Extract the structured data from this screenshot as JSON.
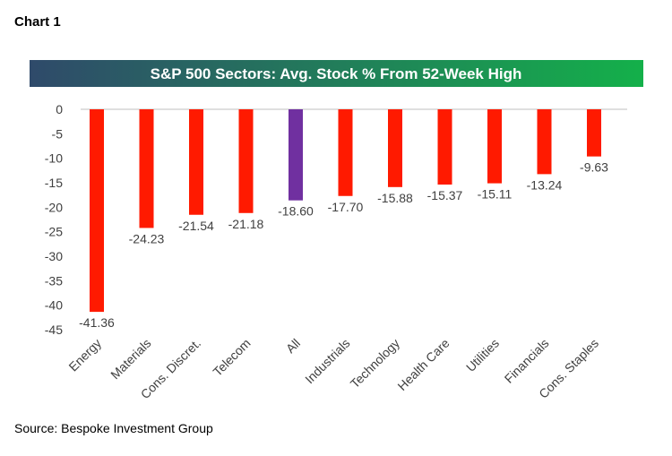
{
  "page": {
    "chart_label": "Chart 1",
    "source": "Source: Bespoke Investment Group"
  },
  "chart_data": {
    "type": "bar",
    "title": "S&P 500 Sectors: Avg. Stock % From 52-Week High",
    "categories": [
      "Energy",
      "Materials",
      "Cons. Discret.",
      "Telecom",
      "All",
      "Industrials",
      "Technology",
      "Health Care",
      "Utilities",
      "Financials",
      "Cons. Staples"
    ],
    "values": [
      -41.36,
      -24.23,
      -21.54,
      -21.18,
      -18.6,
      -17.7,
      -15.88,
      -15.37,
      -15.11,
      -13.24,
      -9.63
    ],
    "data_labels": [
      "-41.36",
      "-24.23",
      "-21.54",
      "-21.18",
      "-18.60",
      "-17.70",
      "-15.88",
      "-15.37",
      "-15.11",
      "-13.24",
      "-9.63"
    ],
    "ylim": [
      -45,
      0
    ],
    "yticks": [
      0,
      -5,
      -10,
      -15,
      -20,
      -25,
      -30,
      -35,
      -40,
      -45
    ],
    "ytick_labels": [
      "0",
      "-5",
      "-10",
      "-15",
      "-20",
      "-25",
      "-30",
      "-35",
      "-40",
      "-45"
    ],
    "highlight_category": "All",
    "colors": {
      "bar": "#ff1a00",
      "highlight": "#7030a0",
      "title_gradient_start": "#2f4a6a",
      "title_gradient_end": "#14b04a",
      "title_text": "#ffffff"
    },
    "grid": false,
    "legend": "none"
  }
}
